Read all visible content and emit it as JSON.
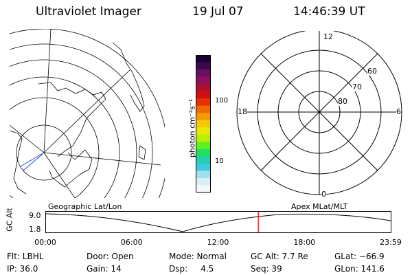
{
  "header": {
    "title": "Ultraviolet Imager",
    "date": "19 Jul 07",
    "time": "14:46:39 UT"
  },
  "colorbar": {
    "unit_label": "photon cm⁻²s⁻¹",
    "tick_100": "100",
    "tick_10": "10",
    "colors": [
      "#1a0030",
      "#3a0a50",
      "#6a1060",
      "#8e1060",
      "#b01030",
      "#d01010",
      "#e83000",
      "#f06a00",
      "#f59a00",
      "#f5c800",
      "#e8e800",
      "#b8f000",
      "#60f020",
      "#20e060",
      "#20d0b0",
      "#40c8e0",
      "#a0e0ee",
      "#d8eef4",
      "#f4f8fa"
    ]
  },
  "polar": {
    "mlt_12": "12",
    "mlt_18": "18",
    "mlt_6": "6",
    "mlt_0": "0",
    "lat_60": "60",
    "lat_70": "70",
    "lat_80": "80"
  },
  "timeline": {
    "left_label": "Geographic Lat/Lon",
    "right_label": "Apex MLat/MLT",
    "axis_label": "GC Alt",
    "y_top": "9.0",
    "y_bottom": "1.8",
    "ticks": [
      "00:00",
      "06:00",
      "12:00",
      "18:00",
      "23:59"
    ],
    "current_time_hours": 14.78,
    "marker_color": "#e00000"
  },
  "info": {
    "row1": [
      {
        "label": "Flt: LBHL"
      },
      {
        "label": "Door: Open"
      },
      {
        "label": "Mode: Normal"
      },
      {
        "label": "GC Alt: 7.7 Re"
      },
      {
        "label": "GLat: −66.9"
      }
    ],
    "row2": [
      {
        "label": "IP: 36.0"
      },
      {
        "label": "Gain: 14"
      },
      {
        "label": "Dsp:     4.5"
      },
      {
        "label": "Seq: 39"
      },
      {
        "label": "GLon: 141.6"
      }
    ]
  }
}
